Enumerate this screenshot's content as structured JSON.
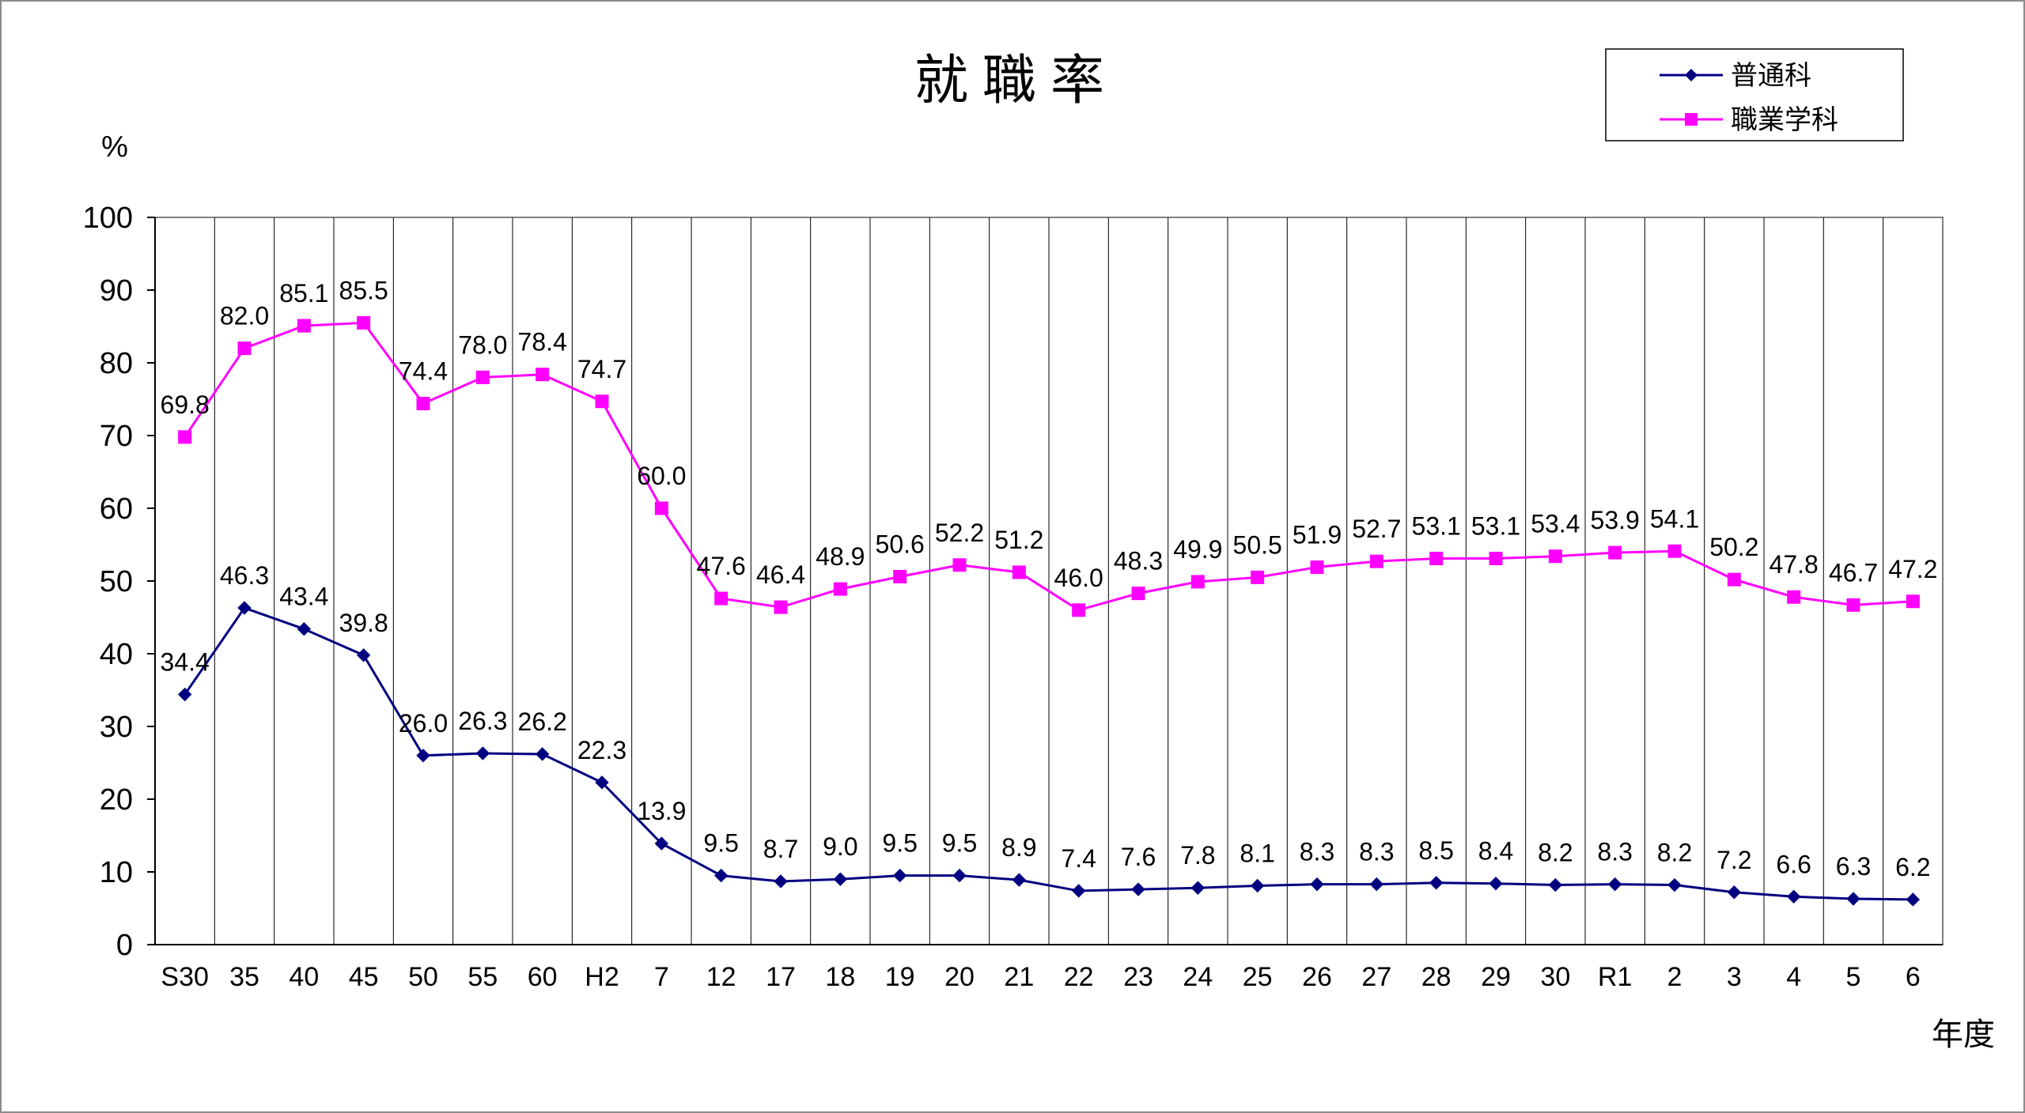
{
  "chart_data": {
    "type": "line",
    "title": "就職率",
    "ylabel": "%",
    "xlabel": "年度",
    "ylim": [
      0,
      100
    ],
    "ytick_step": 10,
    "grid": "vertical category lines",
    "legend_position": "top-right",
    "categories": [
      "S30",
      "35",
      "40",
      "45",
      "50",
      "55",
      "60",
      "H2",
      "7",
      "12",
      "17",
      "18",
      "19",
      "20",
      "21",
      "22",
      "23",
      "24",
      "25",
      "26",
      "27",
      "28",
      "29",
      "30",
      "R1",
      "2",
      "3",
      "4",
      "5",
      "6"
    ],
    "series": [
      {
        "name": "普通科",
        "color": "#000080",
        "marker": "diamond",
        "values": [
          34.4,
          46.3,
          43.4,
          39.8,
          26.0,
          26.3,
          26.2,
          22.3,
          13.9,
          9.5,
          8.7,
          9.0,
          9.5,
          9.5,
          8.9,
          7.4,
          7.6,
          7.8,
          8.1,
          8.3,
          8.3,
          8.5,
          8.4,
          8.2,
          8.3,
          8.2,
          7.2,
          6.6,
          6.3,
          6.2
        ],
        "labels": [
          "34.4",
          "46.3",
          "43.4",
          "39.8",
          "26.0",
          "26.3",
          "26.2",
          "22.3",
          "13.9",
          "9.5",
          "8.7",
          "9.0",
          "9.5",
          "9.5",
          "8.9",
          "7.4",
          "7.6",
          "7.8",
          "8.1",
          "8.3",
          "8.3",
          "8.5",
          "8.4",
          "8.2",
          "8.3",
          "8.2",
          "7.2",
          "6.6",
          "6.3",
          "6.2"
        ]
      },
      {
        "name": "職業学科",
        "color": "#FF00FF",
        "marker": "square",
        "values": [
          69.8,
          82.0,
          85.1,
          85.5,
          74.4,
          78.0,
          78.4,
          74.7,
          60.0,
          47.6,
          46.4,
          48.9,
          50.6,
          52.2,
          51.2,
          46.0,
          48.3,
          49.9,
          50.5,
          51.9,
          52.7,
          53.1,
          53.1,
          53.4,
          53.9,
          54.1,
          50.2,
          47.8,
          46.7,
          47.2
        ],
        "labels": [
          "69.8",
          "82.0",
          "85.1",
          "85.5",
          "74.4",
          "78.0",
          "78.4",
          "74.7",
          "60.0",
          "47.6",
          "46.4",
          "48.9",
          "50.6",
          "52.2",
          "51.2",
          "46.0",
          "48.3",
          "49.9",
          "50.5",
          "51.9",
          "52.7",
          "53.1",
          "53.1",
          "53.4",
          "53.9",
          "54.1",
          "50.2",
          "47.8",
          "46.7",
          "47.2"
        ]
      }
    ]
  }
}
